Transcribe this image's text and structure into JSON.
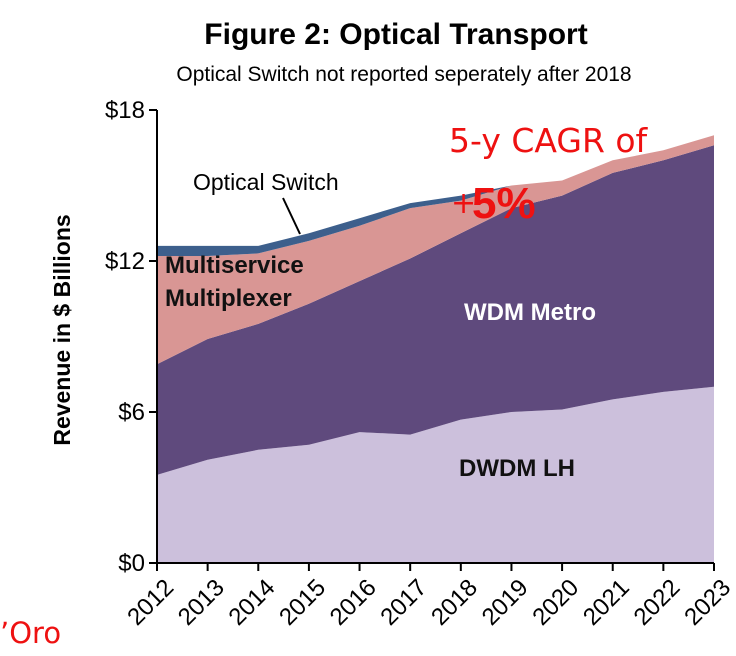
{
  "chart_data": {
    "type": "area",
    "title": "Figure 2: Optical Transport",
    "subtitle": "Optical Switch not reported seperately after 2018",
    "ylabel": "Revenue in $ Billions",
    "xlabel": "",
    "ylim": [
      0,
      18
    ],
    "yticks": [
      "$0",
      "$6",
      "$12",
      "$18"
    ],
    "ytick_values": [
      0,
      6,
      12,
      18
    ],
    "categories": [
      "2012",
      "2013",
      "2014",
      "2015",
      "2016",
      "2017",
      "2018",
      "2019",
      "2020",
      "2021",
      "2022",
      "2023"
    ],
    "stacked": true,
    "series": [
      {
        "name": "DWDM LH",
        "color": "#ccc0dc",
        "values": [
          3.5,
          4.1,
          4.5,
          4.7,
          5.2,
          5.1,
          5.7,
          6.0,
          6.1,
          6.5,
          6.8,
          7.0
        ]
      },
      {
        "name": "WDM Metro",
        "color": "#5f4a7d",
        "values": [
          4.4,
          4.8,
          5.0,
          5.6,
          6.0,
          7.0,
          7.4,
          8.1,
          8.5,
          9.0,
          9.2,
          9.6
        ]
      },
      {
        "name": "Multiservice Multiplexer",
        "color": "#d99694",
        "values": [
          4.3,
          3.3,
          2.8,
          2.5,
          2.2,
          2.0,
          1.3,
          0.9,
          0.6,
          0.5,
          0.4,
          0.4
        ]
      },
      {
        "name": "Optical Switch",
        "color": "#3d5f8c",
        "values": [
          0.4,
          0.4,
          0.3,
          0.3,
          0.3,
          0.2,
          0.2,
          0.0,
          0.0,
          0.0,
          0.0,
          0.0
        ]
      }
    ],
    "grid": false,
    "legend": "inline labels"
  },
  "annotations": {
    "optical_switch_label": "Optical Switch",
    "cagr_line1": "5-y CAGR of",
    "cagr_plus": "+",
    "cagr_value": "5%",
    "corner_text": "’Oro"
  }
}
